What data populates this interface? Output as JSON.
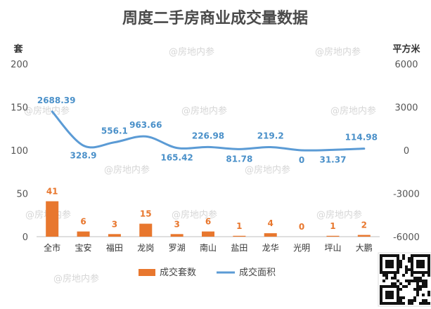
{
  "chart_data": {
    "type": "bar",
    "title": "周度二手房商业成交量数据",
    "left_unit": "套",
    "right_unit": "平方米",
    "categories": [
      "全市",
      "宝安",
      "福田",
      "龙岗",
      "罗湖",
      "南山",
      "盐田",
      "龙华",
      "光明",
      "坪山",
      "大鹏"
    ],
    "series": [
      {
        "name": "成交套数",
        "type": "bar",
        "axis": "left",
        "color": "#e8772e",
        "values": [
          41,
          6,
          3,
          15,
          3,
          6,
          1,
          4,
          0,
          1,
          2
        ],
        "labels": [
          "41",
          "6",
          "3",
          "15",
          "3",
          "6",
          "1",
          "4",
          "0",
          "1",
          "2"
        ]
      },
      {
        "name": "成交面积",
        "type": "line",
        "axis": "right",
        "color": "#5b9bd5",
        "values": [
          2688.39,
          328.9,
          556.1,
          963.66,
          165.42,
          226.98,
          81.78,
          219.2,
          0,
          31.37,
          114.98
        ],
        "labels": [
          "2688.39",
          "328.9",
          "556.1",
          "963.66",
          "165.42",
          "226.98",
          "81.78",
          "219.2",
          "0",
          "31.37",
          "114.98"
        ]
      }
    ],
    "left_axis": {
      "min": 0,
      "max": 200,
      "ticks": [
        "0",
        "50",
        "100",
        "150",
        "200"
      ]
    },
    "right_axis": {
      "min": -6000,
      "max": 6000,
      "ticks": [
        "-6000",
        "-3000",
        "0",
        "3000",
        "6000"
      ]
    },
    "grid": false,
    "legend": "bottom"
  },
  "watermark": {
    "text": "@房地内参"
  }
}
